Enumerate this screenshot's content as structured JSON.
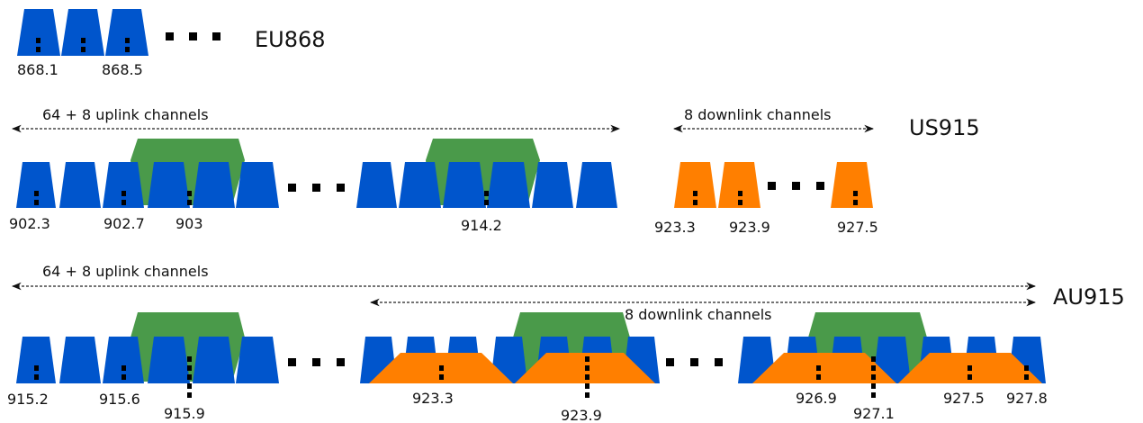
{
  "colors": {
    "uplink_125k": "#0055cc",
    "uplink_500k": "#4a9a4a",
    "downlink": "#ff7f00",
    "marker": "#000000",
    "text": "#111111"
  },
  "eu868": {
    "band": "EU868",
    "labels": [
      "868.1",
      "868.5"
    ]
  },
  "us915": {
    "band": "US915",
    "uplink_note": "64 + 8 uplink channels",
    "downlink_note": "8 downlink channels",
    "uplink_labels": [
      "902.3",
      "902.7",
      "903",
      "914.2"
    ],
    "downlink_labels": [
      "923.3",
      "923.9",
      "927.5"
    ]
  },
  "au915": {
    "band": "AU915",
    "uplink_note": "64 + 8 uplink channels",
    "downlink_note": "8 downlink channels",
    "uplink_labels": [
      "915.2",
      "915.6",
      "915.9"
    ],
    "downlink_labels": [
      "923.3",
      "923.9",
      "926.9",
      "927.1",
      "927.5",
      "927.8"
    ]
  }
}
